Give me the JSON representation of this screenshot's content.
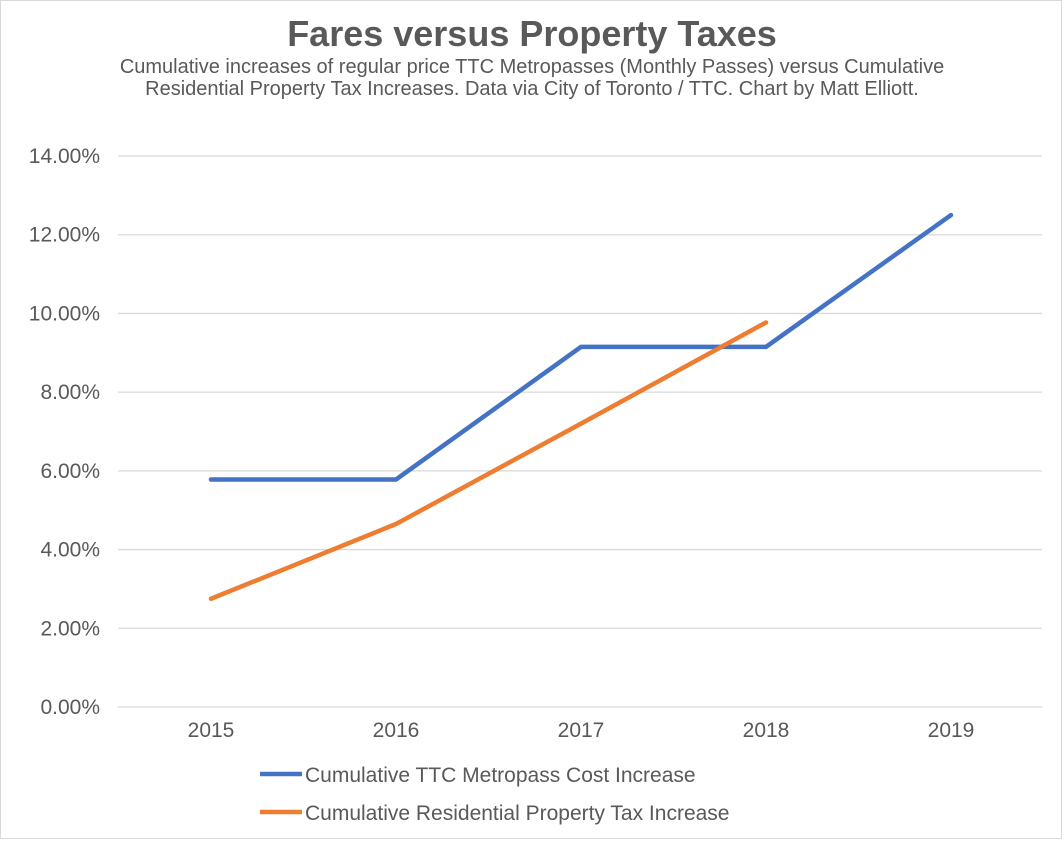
{
  "chart_data": {
    "type": "line",
    "title": "Fares versus Property Taxes",
    "subtitle": "Cumulative increases of regular price TTC Metropasses (Monthly Passes) versus Cumulative Residential Property Tax Increases. Data via City of Toronto / TTC. Chart by Matt Elliott.",
    "xlabel": "",
    "ylabel": "",
    "categories": [
      "2015",
      "2016",
      "2017",
      "2018",
      "2019"
    ],
    "ylim": [
      0,
      14
    ],
    "y_ticks": [
      0,
      2,
      4,
      6,
      8,
      10,
      12,
      14
    ],
    "y_tick_labels": [
      "0.00%",
      "2.00%",
      "4.00%",
      "6.00%",
      "8.00%",
      "10.00%",
      "12.00%",
      "14.00%"
    ],
    "grid": true,
    "legend_position": "bottom",
    "series": [
      {
        "name": "Cumulative TTC Metropass Cost Increase",
        "color": "#4472c4",
        "values": [
          5.78,
          5.78,
          9.15,
          9.15,
          12.5
        ]
      },
      {
        "name": "Cumulative Residential Property Tax Increase",
        "color": "#ed7d31",
        "values": [
          2.75,
          4.65,
          7.2,
          9.77,
          null
        ]
      }
    ]
  }
}
